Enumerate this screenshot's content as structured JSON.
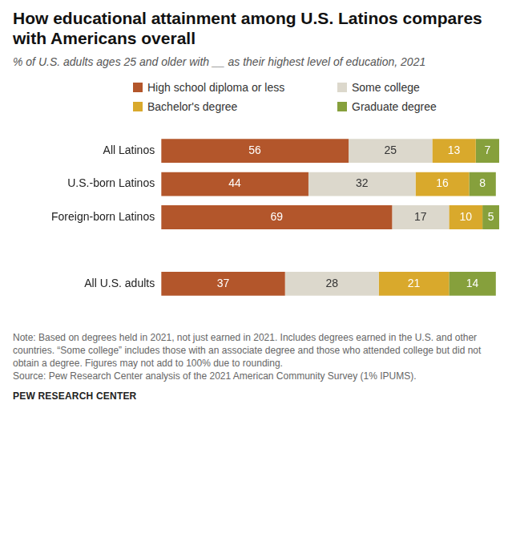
{
  "chart_data": {
    "type": "bar",
    "orientation": "horizontal",
    "stacked": true,
    "data_labels": true,
    "tick_labels": "y",
    "grid": false,
    "legend": "top",
    "title": "How educational attainment among U.S. Latinos compares with Americans overall",
    "subtitle": "% of U.S. adults ages 25 and older with __ as their highest level of education, 2021",
    "categories": [
      "All Latinos",
      "U.S.-born Latinos",
      "Foreign-born Latinos",
      null,
      "All U.S. adults"
    ],
    "xlim": [
      0,
      101
    ],
    "series": [
      {
        "name": "High school diploma or less",
        "color": "#b3562b",
        "values": [
          56,
          44,
          69,
          null,
          37
        ]
      },
      {
        "name": "Some college",
        "color": "#dcd8cc",
        "values": [
          25,
          32,
          17,
          null,
          28
        ]
      },
      {
        "name": "Bachelor's degree",
        "color": "#d9a92c",
        "values": [
          13,
          16,
          10,
          null,
          21
        ]
      },
      {
        "name": "Graduate degree",
        "color": "#86a03c",
        "values": [
          7,
          8,
          5,
          null,
          14
        ]
      }
    ],
    "note": "Note: Based on degrees held in 2021, not just earned in 2021. Includes degrees earned in the U.S. and other countries. “Some college” includes those with an associate degree and those who attended college but did not obtain a degree. Figures may not add to 100% due to rounding.",
    "source": "Source: Pew Research Center analysis of the 2021 American Community Survey (1% IPUMS).",
    "brand": "PEW RESEARCH CENTER"
  }
}
